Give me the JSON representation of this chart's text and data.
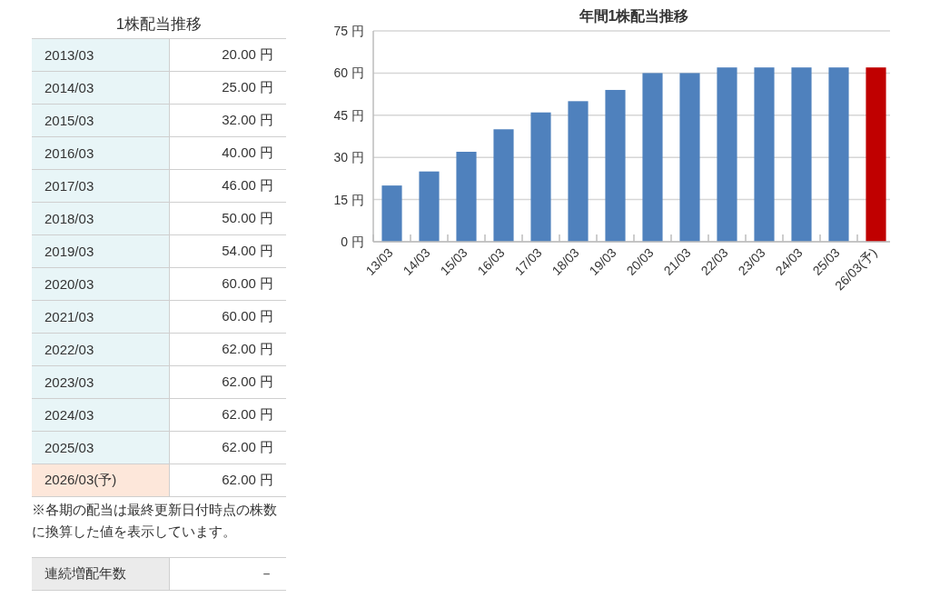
{
  "chart_data": [
    {
      "type": "other",
      "title": "1株配当推移",
      "categories": [
        "2013/03",
        "2014/03",
        "2015/03",
        "2016/03",
        "2017/03",
        "2018/03",
        "2019/03",
        "2020/03",
        "2021/03",
        "2022/03",
        "2023/03",
        "2024/03",
        "2025/03",
        "2026/03(予)"
      ],
      "value_labels": [
        "20.00 円",
        "25.00 円",
        "32.00 円",
        "40.00 円",
        "46.00 円",
        "50.00 円",
        "54.00 円",
        "60.00 円",
        "60.00 円",
        "62.00 円",
        "62.00 円",
        "62.00 円",
        "62.00 円",
        "62.00 円"
      ],
      "colors": [
        "#e8f5f7",
        "#e8f5f7",
        "#e8f5f7",
        "#e8f5f7",
        "#e8f5f7",
        "#e8f5f7",
        "#e8f5f7",
        "#e8f5f7",
        "#e8f5f7",
        "#e8f5f7",
        "#e8f5f7",
        "#e8f5f7",
        "#e8f5f7",
        "#fde7da"
      ],
      "annotations": [
        "※各期の配当は最終更新日付時点の株数に換算した値を表示しています。"
      ]
    },
    {
      "type": "bar",
      "title": "年間1株配当推移",
      "categories": [
        "13/03",
        "14/03",
        "15/03",
        "16/03",
        "17/03",
        "18/03",
        "19/03",
        "20/03",
        "21/03",
        "22/03",
        "23/03",
        "24/03",
        "25/03",
        "26/03(予)"
      ],
      "values": [
        20,
        25,
        32,
        40,
        46,
        50,
        54,
        60,
        60,
        62,
        62,
        62,
        62,
        62
      ],
      "colors": [
        "#4f81bd",
        "#4f81bd",
        "#4f81bd",
        "#4f81bd",
        "#4f81bd",
        "#4f81bd",
        "#4f81bd",
        "#4f81bd",
        "#4f81bd",
        "#4f81bd",
        "#4f81bd",
        "#4f81bd",
        "#4f81bd",
        "#c00000"
      ],
      "ylim": [
        0,
        75
      ],
      "yticks": [
        {
          "value": 0,
          "label": "0 円"
        },
        {
          "value": 15,
          "label": "15 円"
        },
        {
          "value": 30,
          "label": "30 円"
        },
        {
          "value": 45,
          "label": "45 円"
        },
        {
          "value": 60,
          "label": "60 円"
        },
        {
          "value": 75,
          "label": "75 円"
        }
      ],
      "grid": "y"
    },
    {
      "type": "other",
      "categories": [
        "連続増配年数"
      ],
      "value_labels": [
        "－"
      ],
      "colors": [
        "#ebebeb"
      ]
    }
  ]
}
